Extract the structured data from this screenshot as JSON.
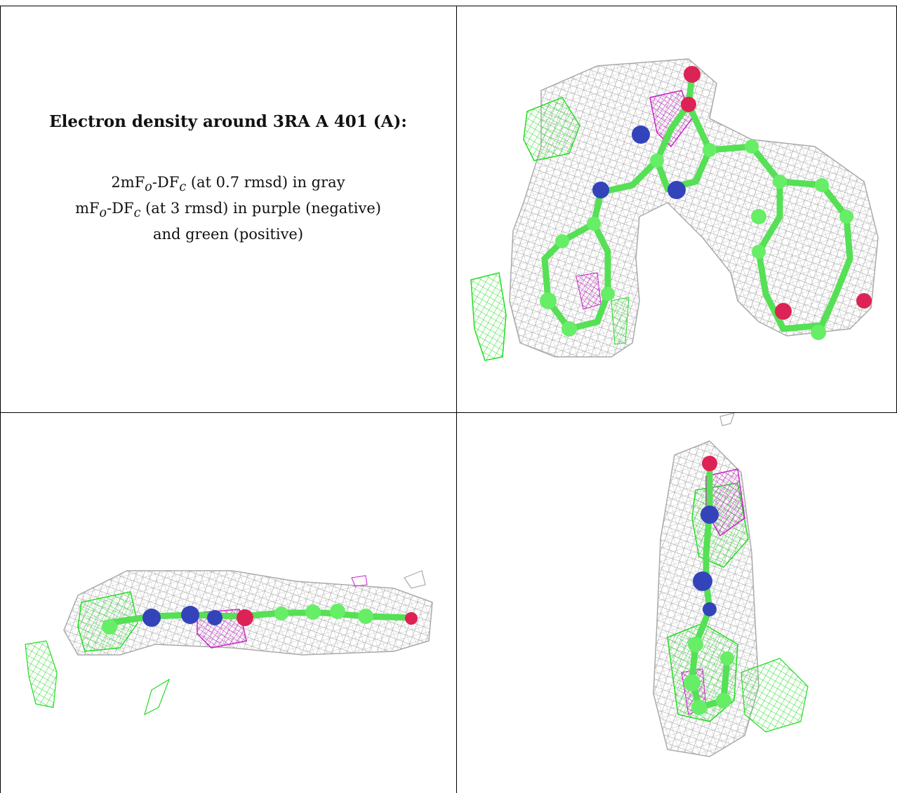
{
  "caption": {
    "title": "Electron density around 3RA A 401 (A):",
    "map1": {
      "prefix": "2mF",
      "sub1": "o",
      "mid": "-DF",
      "sub2": "c",
      "rest": " (at 0.7 rmsd) in gray"
    },
    "map2": {
      "prefix": "mF",
      "sub1": "o",
      "mid": "-DF",
      "sub2": "c",
      "rest": " (at 3 rmsd) in purple (negative)"
    },
    "map2_cont": "and green (positive)"
  },
  "colors": {
    "mesh_gray": "#9a9a9a",
    "positive_green": "#22dd22",
    "negative_purple": "#cc22cc",
    "carbon": "#66ee66",
    "nitrogen": "#3344bb",
    "oxygen": "#dd2255"
  }
}
